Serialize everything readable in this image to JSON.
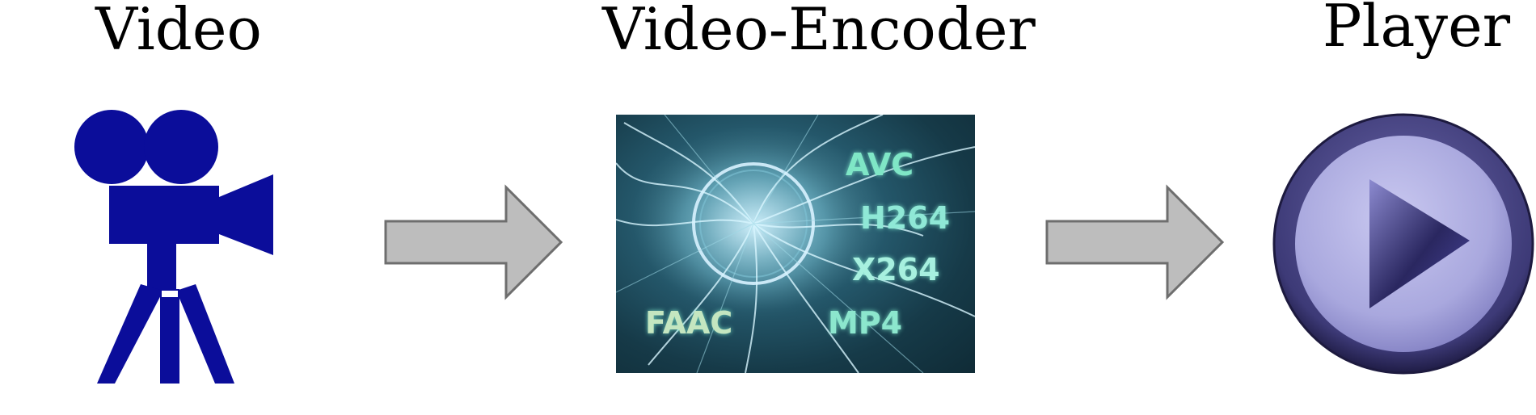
{
  "stages": {
    "video": {
      "label": "Video",
      "icon": "movie-camera-icon"
    },
    "encoder": {
      "label": "Video-Encoder",
      "icon": "plasma-globe-image",
      "codecs": {
        "avc": "AVC",
        "h264": "H264",
        "x264": "X264",
        "faac": "FAAC",
        "mp4": "MP4"
      }
    },
    "player": {
      "label": "Player",
      "icon": "play-button-icon"
    }
  },
  "colors": {
    "camera": "#0b0d9a",
    "arrow_fill": "#bdbdbd",
    "arrow_stroke": "#6e6e6e",
    "player_outer": "#3d3a77",
    "player_inner": "#a9a8de",
    "player_triangle": "#2a2760"
  }
}
